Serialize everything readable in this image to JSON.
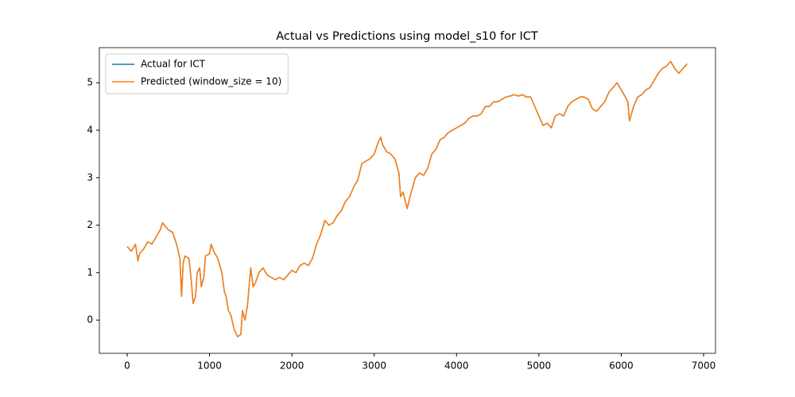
{
  "chart_data": {
    "type": "line",
    "title": "Actual vs Predictions using model_s10 for ICT",
    "x": [
      0,
      50,
      100,
      130,
      150,
      200,
      250,
      300,
      350,
      400,
      430,
      450,
      500,
      550,
      600,
      640,
      660,
      680,
      700,
      750,
      780,
      800,
      830,
      850,
      880,
      900,
      930,
      950,
      1000,
      1020,
      1050,
      1100,
      1150,
      1180,
      1200,
      1230,
      1260,
      1300,
      1340,
      1380,
      1400,
      1430,
      1460,
      1500,
      1530,
      1560,
      1600,
      1650,
      1700,
      1750,
      1800,
      1850,
      1900,
      1950,
      2000,
      2050,
      2100,
      2150,
      2200,
      2250,
      2300,
      2350,
      2400,
      2450,
      2500,
      2550,
      2600,
      2650,
      2700,
      2750,
      2800,
      2850,
      2900,
      2950,
      3000,
      3050,
      3080,
      3100,
      3150,
      3200,
      3250,
      3300,
      3320,
      3350,
      3400,
      3450,
      3500,
      3550,
      3600,
      3650,
      3700,
      3750,
      3800,
      3850,
      3900,
      3950,
      4000,
      4050,
      4100,
      4150,
      4200,
      4250,
      4300,
      4350,
      4400,
      4450,
      4500,
      4550,
      4600,
      4650,
      4700,
      4750,
      4800,
      4850,
      4900,
      4950,
      5000,
      5050,
      5100,
      5150,
      5200,
      5250,
      5300,
      5350,
      5400,
      5450,
      5500,
      5550,
      5600,
      5650,
      5700,
      5750,
      5800,
      5850,
      5900,
      5950,
      6000,
      6050,
      6080,
      6100,
      6150,
      6200,
      6250,
      6300,
      6350,
      6400,
      6450,
      6500,
      6550,
      6600,
      6650,
      6700,
      6750,
      6800
    ],
    "series": [
      {
        "name": "Actual for ICT",
        "color": "#1f77b4",
        "values": [
          1.55,
          1.45,
          1.6,
          1.25,
          1.4,
          1.5,
          1.65,
          1.6,
          1.75,
          1.9,
          2.05,
          2.0,
          1.9,
          1.85,
          1.6,
          1.3,
          0.5,
          1.2,
          1.35,
          1.3,
          0.8,
          0.35,
          0.5,
          1.0,
          1.1,
          0.7,
          0.9,
          1.35,
          1.4,
          1.6,
          1.45,
          1.3,
          1.0,
          0.6,
          0.5,
          0.2,
          0.1,
          -0.2,
          -0.35,
          -0.3,
          0.2,
          0.0,
          0.3,
          1.1,
          0.7,
          0.8,
          1.0,
          1.1,
          0.95,
          0.9,
          0.85,
          0.9,
          0.85,
          0.95,
          1.05,
          1.0,
          1.15,
          1.2,
          1.15,
          1.3,
          1.6,
          1.8,
          2.1,
          2.0,
          2.05,
          2.2,
          2.3,
          2.5,
          2.6,
          2.8,
          2.95,
          3.3,
          3.35,
          3.4,
          3.5,
          3.75,
          3.85,
          3.7,
          3.55,
          3.5,
          3.4,
          3.1,
          2.6,
          2.7,
          2.35,
          2.7,
          3.0,
          3.1,
          3.05,
          3.2,
          3.5,
          3.6,
          3.8,
          3.85,
          3.95,
          4.0,
          4.05,
          4.1,
          4.15,
          4.25,
          4.3,
          4.3,
          4.35,
          4.5,
          4.5,
          4.6,
          4.6,
          4.65,
          4.7,
          4.72,
          4.75,
          4.72,
          4.75,
          4.7,
          4.7,
          4.5,
          4.3,
          4.1,
          4.15,
          4.05,
          4.3,
          4.35,
          4.3,
          4.5,
          4.6,
          4.65,
          4.7,
          4.7,
          4.65,
          4.45,
          4.4,
          4.5,
          4.6,
          4.8,
          4.9,
          5.0,
          4.85,
          4.7,
          4.6,
          4.2,
          4.5,
          4.7,
          4.75,
          4.85,
          4.9,
          5.05,
          5.2,
          5.3,
          5.35,
          5.45,
          5.3,
          5.2,
          5.3,
          5.4
        ]
      },
      {
        "name": "Predicted (window_size = 10)",
        "color": "#ff7f0e",
        "values": [
          1.55,
          1.45,
          1.6,
          1.25,
          1.4,
          1.5,
          1.65,
          1.6,
          1.75,
          1.9,
          2.05,
          2.0,
          1.9,
          1.85,
          1.6,
          1.3,
          0.5,
          1.2,
          1.35,
          1.3,
          0.8,
          0.35,
          0.5,
          1.0,
          1.1,
          0.7,
          0.9,
          1.35,
          1.4,
          1.6,
          1.45,
          1.3,
          1.0,
          0.6,
          0.5,
          0.2,
          0.1,
          -0.2,
          -0.35,
          -0.3,
          0.2,
          0.0,
          0.3,
          1.1,
          0.7,
          0.8,
          1.0,
          1.1,
          0.95,
          0.9,
          0.85,
          0.9,
          0.85,
          0.95,
          1.05,
          1.0,
          1.15,
          1.2,
          1.15,
          1.3,
          1.6,
          1.8,
          2.1,
          2.0,
          2.05,
          2.2,
          2.3,
          2.5,
          2.6,
          2.8,
          2.95,
          3.3,
          3.35,
          3.4,
          3.5,
          3.75,
          3.85,
          3.7,
          3.55,
          3.5,
          3.4,
          3.1,
          2.6,
          2.7,
          2.35,
          2.7,
          3.0,
          3.1,
          3.05,
          3.2,
          3.5,
          3.6,
          3.8,
          3.85,
          3.95,
          4.0,
          4.05,
          4.1,
          4.15,
          4.25,
          4.3,
          4.3,
          4.35,
          4.5,
          4.5,
          4.6,
          4.6,
          4.65,
          4.7,
          4.72,
          4.75,
          4.72,
          4.75,
          4.7,
          4.7,
          4.5,
          4.3,
          4.1,
          4.15,
          4.05,
          4.3,
          4.35,
          4.3,
          4.5,
          4.6,
          4.65,
          4.7,
          4.7,
          4.65,
          4.45,
          4.4,
          4.5,
          4.6,
          4.8,
          4.9,
          5.0,
          4.85,
          4.7,
          4.6,
          4.2,
          4.5,
          4.7,
          4.75,
          4.85,
          4.9,
          5.05,
          5.2,
          5.3,
          5.35,
          5.45,
          5.3,
          5.2,
          5.3,
          5.4
        ]
      }
    ],
    "xlim": [
      -338,
      7145
    ],
    "ylim": [
      -0.7,
      5.74
    ],
    "xticks": [
      0,
      1000,
      2000,
      3000,
      4000,
      5000,
      6000,
      7000
    ],
    "yticks": [
      0,
      1,
      2,
      3,
      4,
      5
    ],
    "legend": "upper-left",
    "grid": false
  }
}
